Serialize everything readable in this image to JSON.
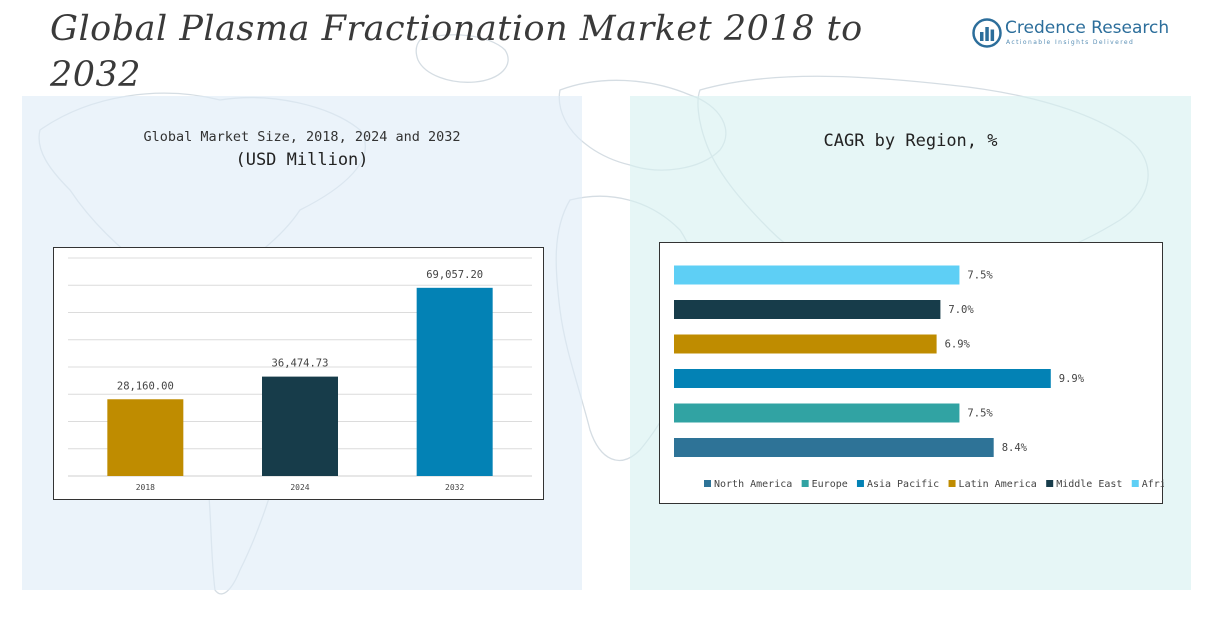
{
  "page": {
    "title": "Global Plasma Fractionation Market 2018 to 2032"
  },
  "logo": {
    "name": "Credence Research",
    "tagline": "Actionable Insights Delivered",
    "icon": "bar-chart-circle-icon",
    "color": "#2c6e9b"
  },
  "left_panel": {
    "title": "Global Market Size, 2018, 2024 and 2032",
    "subtitle": "(USD Million)"
  },
  "right_panel": {
    "title": "CAGR by Region, %"
  },
  "chart_data": [
    {
      "type": "bar",
      "title": "Global Market Size, 2018, 2024 and 2032",
      "subtitle": "(USD Million)",
      "categories": [
        "2018",
        "2024",
        "2032"
      ],
      "values": [
        28160.0,
        36474.73,
        69057.2
      ],
      "value_labels": [
        "28,160.00",
        "36,474.73",
        "69,057.20"
      ],
      "colors": [
        "#bf8c00",
        "#173c4a",
        "#0382b5"
      ],
      "ylim": [
        0,
        80000
      ],
      "grid": true,
      "xlabel": "",
      "ylabel": ""
    },
    {
      "type": "bar",
      "orientation": "horizontal",
      "title": "CAGR by Region, %",
      "categories": [
        "North America",
        "Europe",
        "Asia Pacific",
        "Latin America",
        "Middle East",
        "Africa"
      ],
      "values": [
        8.4,
        7.5,
        9.9,
        6.9,
        7.0,
        7.5
      ],
      "value_labels": [
        "8.4%",
        "7.5%",
        "9.9%",
        "6.9%",
        "7.0%",
        "7.5%"
      ],
      "colors": [
        "#2e7397",
        "#31a3a3",
        "#0382b5",
        "#bf8c00",
        "#173c4a",
        "#5ecff5"
      ],
      "xlim": [
        0,
        10.3
      ],
      "legend": "bottom",
      "grid": false
    }
  ]
}
